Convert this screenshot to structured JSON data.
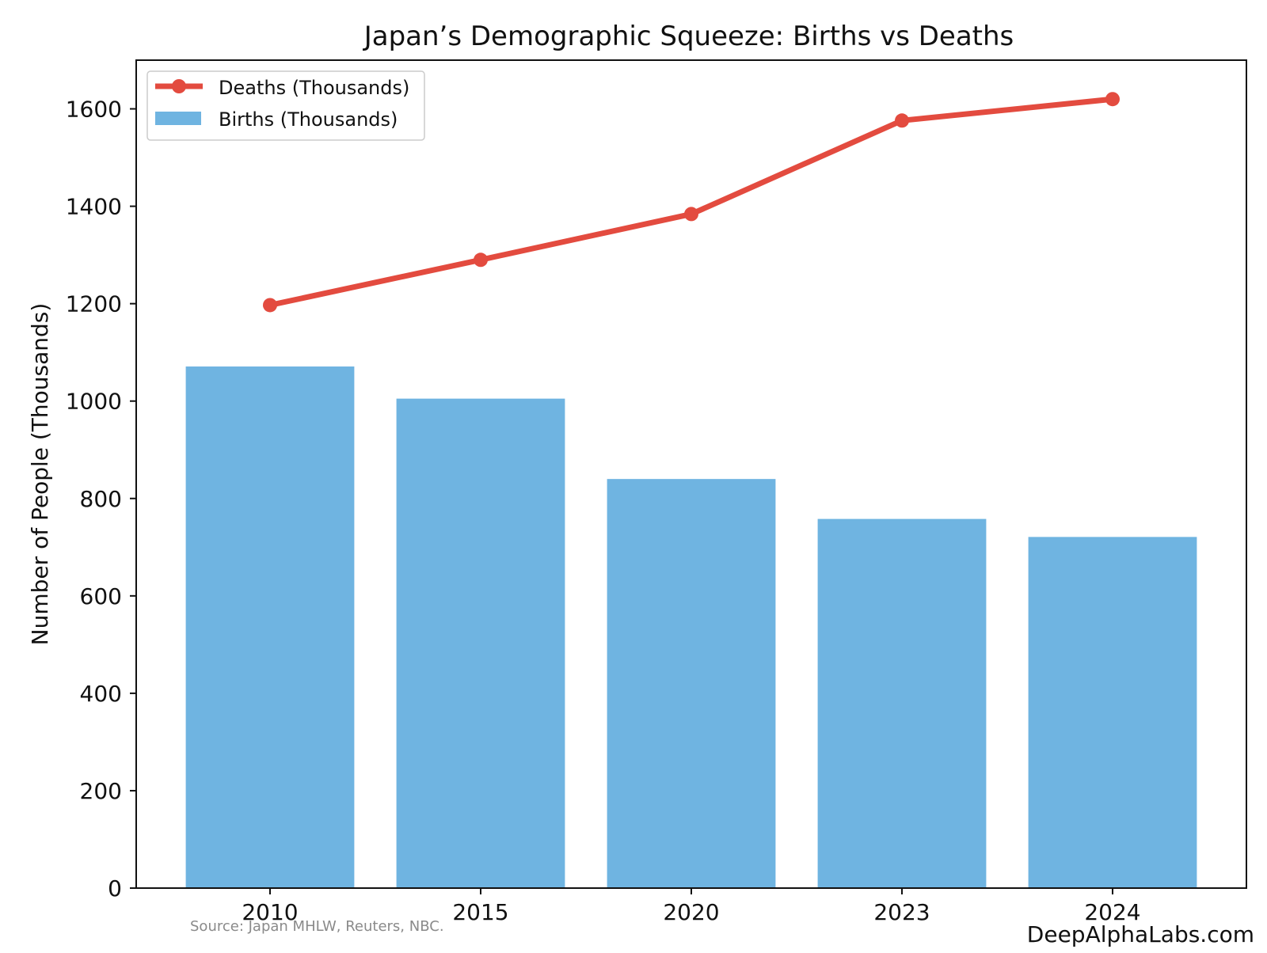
{
  "chart_data": {
    "type": "bar",
    "title": "Japan’s Demographic Squeeze: Births vs Deaths",
    "xlabel": "",
    "ylabel": "Number of People (Thousands)",
    "categories": [
      "2010",
      "2015",
      "2020",
      "2023",
      "2024"
    ],
    "ylim": [
      0,
      1700
    ],
    "yticks": [
      0,
      200,
      400,
      600,
      800,
      1000,
      1200,
      1400,
      1600
    ],
    "grid": false,
    "legend_position": "top-left",
    "series": [
      {
        "name": "Births (Thousands)",
        "type": "bar",
        "color": "#6fb4e1",
        "values": [
          1071,
          1005,
          840,
          758,
          721
        ]
      },
      {
        "name": "Deaths (Thousands)",
        "type": "line",
        "color": "#e34b3f",
        "marker": "circle",
        "values": [
          1197,
          1290,
          1384,
          1576,
          1620
        ]
      }
    ]
  },
  "footer": {
    "source": "Source: Japan MHLW, Reuters, NBC.",
    "brand": "DeepAlphaLabs.com"
  }
}
